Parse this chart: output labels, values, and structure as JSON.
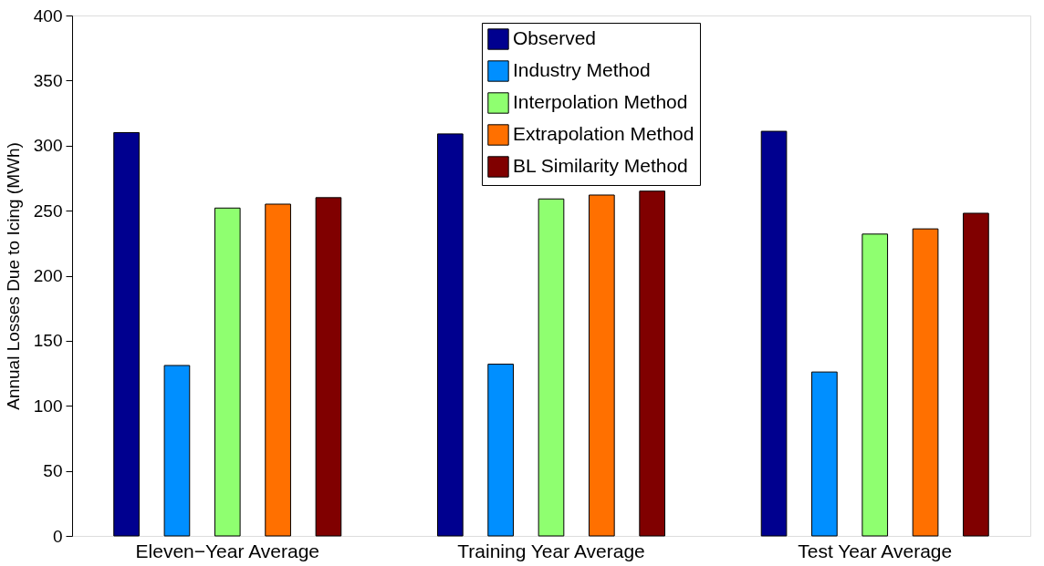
{
  "chart_data": {
    "type": "bar",
    "ylabel": "Annual Losses Due to Icing (MWh)",
    "categories": [
      "Eleven−Year Average",
      "Training Year Average",
      "Test Year Average"
    ],
    "series": [
      {
        "name": "Observed",
        "color": "#00008f",
        "values": [
          310,
          309,
          311
        ]
      },
      {
        "name": "Industry Method",
        "color": "#008fff",
        "values": [
          131,
          132,
          126
        ]
      },
      {
        "name": "Interpolation Method",
        "color": "#8fff70",
        "values": [
          252,
          259,
          232
        ]
      },
      {
        "name": "Extrapolation Method",
        "color": "#ff7000",
        "values": [
          255,
          262,
          236
        ]
      },
      {
        "name": "BL Similarity Method",
        "color": "#800000",
        "values": [
          260,
          265,
          248
        ]
      }
    ],
    "ylim": [
      0,
      400
    ],
    "yticks": [
      0,
      50,
      100,
      150,
      200,
      250,
      300,
      350,
      400
    ],
    "grid": false,
    "legend": "top"
  }
}
